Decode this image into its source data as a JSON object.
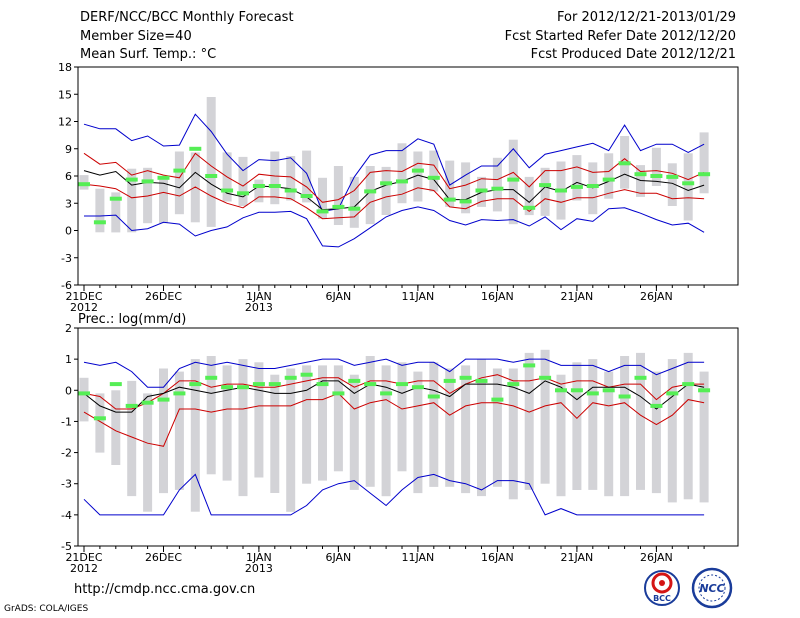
{
  "header": {
    "title": "DERF/NCC/BCC Monthly Forecast",
    "member_size": "Member Size=40",
    "variable": "Mean Surf. Temp.: °C",
    "fcst_period": "For 2012/12/21-2013/01/29",
    "fcst_started": "Fcst Started Refer Date 2012/12/20",
    "fcst_produced": "Fcst Produced Date 2012/12/21"
  },
  "footer": {
    "url": "http://cmdp.ncc.cma.gov.cn",
    "credit": "GrADS: COLA/IGES",
    "logo_left": "BCC",
    "logo_right": "NCC"
  },
  "colors": {
    "box": "#d3d3d7",
    "max_min": "#0000cc",
    "p10_p90": "#cc0000",
    "mean": "#000000",
    "green": "#55ee55"
  },
  "chart_data": [
    {
      "type": "box-plume",
      "name": "temperature",
      "title": "Mean Surf. Temp.: °C",
      "ylim": [
        -6,
        18
      ],
      "yticks": [
        "18",
        "15",
        "12",
        "9",
        "6",
        "3",
        "0",
        "-3",
        "-6"
      ],
      "xticks": [
        {
          "day": 1,
          "label": "21DEC",
          "sub": "2012"
        },
        {
          "day": 6,
          "label": "26DEC",
          "sub": ""
        },
        {
          "day": 12,
          "label": "1JAN",
          "sub": "2013"
        },
        {
          "day": 17,
          "label": "6JAN",
          "sub": ""
        },
        {
          "day": 22,
          "label": "11JAN",
          "sub": ""
        },
        {
          "day": 27,
          "label": "16JAN",
          "sub": ""
        },
        {
          "day": 32,
          "label": "21JAN",
          "sub": ""
        },
        {
          "day": 37,
          "label": "26JAN",
          "sub": ""
        }
      ],
      "days": [
        1,
        2,
        3,
        4,
        5,
        6,
        7,
        8,
        9,
        10,
        11,
        12,
        13,
        14,
        15,
        16,
        17,
        18,
        19,
        20,
        21,
        22,
        23,
        24,
        25,
        26,
        27,
        28,
        29,
        30,
        31,
        32,
        33,
        34,
        35,
        36,
        37,
        38,
        39,
        40
      ],
      "max": [
        11.7,
        11.2,
        11.2,
        9.9,
        10.4,
        9.3,
        9.4,
        12.8,
        10.9,
        8.4,
        6.6,
        7.8,
        7.7,
        8.0,
        6.3,
        2.1,
        2.4,
        5.9,
        8.3,
        8.8,
        8.8,
        10.1,
        9.5,
        5.0,
        6.1,
        7.1,
        7.1,
        9.0,
        6.9,
        8.4,
        8.8,
        9.2,
        9.6,
        8.8,
        11.6,
        8.8,
        9.5,
        9.5,
        8.6,
        9.5
      ],
      "p90": [
        8.5,
        7.3,
        7.5,
        6.1,
        6.6,
        6.1,
        5.8,
        8.5,
        7.1,
        5.9,
        4.9,
        6.2,
        6.0,
        5.9,
        4.8,
        3.1,
        3.4,
        4.4,
        6.4,
        6.6,
        6.5,
        7.4,
        7.2,
        4.6,
        5.0,
        5.7,
        5.6,
        6.4,
        4.8,
        6.6,
        6.6,
        7.0,
        6.4,
        6.5,
        7.9,
        6.5,
        6.6,
        6.3,
        5.6,
        6.4
      ],
      "mean": [
        6.6,
        6.1,
        6.5,
        5.0,
        5.3,
        5.2,
        4.7,
        6.4,
        5.1,
        4.1,
        3.7,
        4.9,
        4.8,
        4.6,
        3.7,
        2.3,
        2.4,
        2.6,
        4.3,
        5.0,
        5.4,
        6.1,
        5.6,
        3.4,
        3.4,
        4.2,
        4.5,
        4.5,
        3.1,
        4.8,
        4.3,
        5.3,
        4.7,
        5.4,
        6.2,
        5.5,
        5.4,
        5.2,
        4.4,
        5.0
      ],
      "p10": [
        5.1,
        4.9,
        4.6,
        3.6,
        3.8,
        4.2,
        3.8,
        4.8,
        3.8,
        3.0,
        2.5,
        3.7,
        3.7,
        3.5,
        2.5,
        1.3,
        1.4,
        1.5,
        3.1,
        3.7,
        4.0,
        4.7,
        4.4,
        2.6,
        2.4,
        3.2,
        3.5,
        3.5,
        2.1,
        3.5,
        3.1,
        3.6,
        3.6,
        4.1,
        4.5,
        4.1,
        4.1,
        3.5,
        3.6,
        3.5
      ],
      "min": [
        1.6,
        1.6,
        1.7,
        0.0,
        0.2,
        0.9,
        0.7,
        -0.6,
        0.0,
        0.4,
        1.4,
        2.0,
        2.0,
        2.1,
        1.3,
        -1.7,
        -1.8,
        -0.9,
        0.3,
        1.5,
        2.2,
        2.6,
        2.2,
        1.1,
        0.6,
        1.2,
        1.1,
        1.2,
        0.5,
        1.5,
        0.1,
        1.3,
        1.0,
        2.4,
        2.5,
        1.9,
        1.2,
        0.6,
        0.8,
        -0.2
      ],
      "box_top": [
        6.1,
        4.6,
        4.2,
        6.8,
        6.9,
        5.6,
        8.7,
        8.6,
        14.7,
        8.6,
        8.1,
        5.6,
        8.7,
        8.2,
        8.8,
        5.8,
        7.1,
        5.9,
        7.1,
        7.0,
        9.6,
        8.7,
        8.8,
        7.7,
        7.5,
        5.9,
        8.0,
        10.0,
        5.9,
        6.9,
        7.6,
        8.3,
        7.5,
        8.5,
        10.4,
        7.2,
        9.1,
        7.4,
        8.5,
        10.8
      ],
      "box_bot": [
        4.5,
        -0.2,
        -0.2,
        -0.2,
        0.8,
        0.8,
        1.8,
        0.9,
        0.4,
        3.2,
        2.7,
        3.1,
        2.9,
        3.3,
        3.1,
        1.3,
        0.6,
        0.3,
        0.7,
        1.7,
        3.0,
        3.2,
        4.3,
        2.6,
        1.9,
        2.6,
        2.1,
        0.7,
        1.7,
        1.6,
        1.2,
        3.3,
        1.8,
        3.5,
        4.6,
        3.7,
        4.9,
        2.7,
        1.1,
        4.1
      ],
      "green": [
        5.1,
        0.9,
        3.5,
        5.6,
        5.4,
        5.8,
        6.6,
        9.0,
        6.0,
        4.4,
        4.1,
        4.9,
        4.9,
        4.4,
        3.8,
        2.1,
        2.6,
        2.4,
        4.3,
        5.2,
        5.4,
        6.6,
        5.8,
        3.4,
        3.2,
        4.4,
        4.6,
        5.6,
        2.5,
        5.0,
        4.4,
        4.8,
        4.9,
        5.6,
        7.4,
        6.2,
        6.0,
        5.9,
        5.2,
        6.2
      ]
    },
    {
      "type": "box-plume",
      "name": "precipitation",
      "title": "Prec.: log(mm/d)",
      "ylim": [
        -5,
        2
      ],
      "yticks": [
        "2",
        "1",
        "0",
        "-1",
        "-2",
        "-3",
        "-4",
        "-5"
      ],
      "xticks": [
        {
          "day": 1,
          "label": "21DEC",
          "sub": "2012"
        },
        {
          "day": 6,
          "label": "26DEC",
          "sub": ""
        },
        {
          "day": 12,
          "label": "1JAN",
          "sub": "2013"
        },
        {
          "day": 17,
          "label": "6JAN",
          "sub": ""
        },
        {
          "day": 22,
          "label": "11JAN",
          "sub": ""
        },
        {
          "day": 27,
          "label": "16JAN",
          "sub": ""
        },
        {
          "day": 32,
          "label": "21JAN",
          "sub": ""
        },
        {
          "day": 37,
          "label": "26JAN",
          "sub": ""
        }
      ],
      "days": [
        1,
        2,
        3,
        4,
        5,
        6,
        7,
        8,
        9,
        10,
        11,
        12,
        13,
        14,
        15,
        16,
        17,
        18,
        19,
        20,
        21,
        22,
        23,
        24,
        25,
        26,
        27,
        28,
        29,
        30,
        31,
        32,
        33,
        34,
        35,
        36,
        37,
        38,
        39,
        40
      ],
      "max": [
        0.9,
        0.8,
        0.9,
        0.6,
        0.1,
        0.1,
        0.7,
        0.9,
        0.8,
        0.9,
        0.8,
        0.7,
        0.7,
        0.8,
        0.9,
        1.0,
        1.0,
        0.8,
        0.9,
        1.0,
        0.8,
        0.9,
        0.9,
        0.6,
        1.0,
        1.0,
        1.0,
        0.9,
        1.0,
        1.0,
        0.8,
        0.8,
        0.8,
        0.6,
        0.8,
        0.8,
        0.5,
        0.7,
        0.9,
        0.9
      ],
      "p90": [
        -0.1,
        -0.2,
        -0.6,
        -0.6,
        -0.4,
        -0.1,
        0.3,
        0.3,
        0.1,
        0.2,
        0.2,
        0.1,
        0.1,
        0.2,
        0.3,
        0.4,
        0.4,
        0.1,
        0.3,
        0.3,
        0.2,
        0.3,
        0.3,
        -0.1,
        0.2,
        0.4,
        0.5,
        0.3,
        0.3,
        0.4,
        0.2,
        0.3,
        0.3,
        0.1,
        0.2,
        0.2,
        -0.3,
        0.1,
        0.2,
        0.2
      ],
      "mean": [
        -0.1,
        -0.5,
        -0.7,
        -0.7,
        -0.2,
        -0.1,
        0.1,
        0.0,
        -0.1,
        0.0,
        0.1,
        0.0,
        -0.1,
        -0.1,
        0.0,
        0.3,
        0.3,
        -0.1,
        0.2,
        0.1,
        -0.1,
        0.1,
        0.0,
        -0.2,
        0.2,
        0.2,
        0.2,
        0.1,
        -0.1,
        0.3,
        0.1,
        -0.3,
        0.1,
        0.1,
        0.1,
        -0.2,
        -0.6,
        -0.2,
        0.2,
        0.1
      ],
      "p10": [
        -0.7,
        -1.0,
        -1.3,
        -1.5,
        -1.7,
        -1.8,
        -0.6,
        -0.6,
        -0.7,
        -0.6,
        -0.6,
        -0.5,
        -0.5,
        -0.5,
        -0.3,
        -0.3,
        -0.1,
        -0.6,
        -0.4,
        -0.3,
        -0.6,
        -0.5,
        -0.4,
        -0.8,
        -0.5,
        -0.4,
        -0.4,
        -0.5,
        -0.7,
        -0.5,
        -0.4,
        -0.9,
        -0.4,
        -0.5,
        -0.4,
        -0.8,
        -1.1,
        -0.8,
        -0.3,
        -0.4
      ],
      "min": [
        -3.5,
        -4.0,
        -4.0,
        -4.0,
        -4.0,
        -4.0,
        -3.2,
        -2.7,
        -4.0,
        -4.0,
        -4.0,
        -4.0,
        -4.0,
        -4.0,
        -3.7,
        -3.2,
        -3.0,
        -2.9,
        -3.3,
        -3.7,
        -3.2,
        -2.8,
        -2.7,
        -2.9,
        -3.0,
        -3.2,
        -2.9,
        -2.9,
        -3.0,
        -4.0,
        -3.8,
        -4.0,
        -4.0,
        -4.0,
        -4.0,
        -4.0,
        -4.0,
        -4.0,
        -4.0,
        -4.0
      ],
      "box_top": [
        0.4,
        -0.1,
        0.0,
        0.3,
        -0.1,
        0.7,
        0.6,
        1.0,
        1.1,
        0.8,
        1.0,
        0.9,
        0.5,
        0.7,
        0.8,
        0.8,
        0.8,
        0.5,
        1.1,
        0.8,
        0.9,
        0.6,
        0.9,
        0.7,
        0.8,
        1.0,
        0.7,
        0.7,
        1.2,
        1.3,
        0.5,
        0.9,
        1.0,
        0.6,
        1.1,
        1.2,
        0.6,
        1.0,
        1.2,
        0.6
      ],
      "box_bot": [
        -1.0,
        -2.0,
        -2.4,
        -3.4,
        -3.9,
        -3.3,
        -3.2,
        -3.9,
        -2.7,
        -2.9,
        -3.4,
        -2.8,
        -3.3,
        -3.9,
        -3.0,
        -2.9,
        -2.6,
        -3.2,
        -3.1,
        -3.4,
        -2.6,
        -3.3,
        -3.1,
        -3.1,
        -3.3,
        -3.4,
        -3.1,
        -3.5,
        -3.2,
        -3.0,
        -3.4,
        -3.2,
        -3.2,
        -3.4,
        -3.4,
        -3.2,
        -3.3,
        -3.6,
        -3.5,
        -3.6
      ],
      "green": [
        -0.1,
        -0.9,
        0.2,
        -0.5,
        -0.4,
        -0.3,
        -0.1,
        0.2,
        0.4,
        0.1,
        0.1,
        0.2,
        0.2,
        0.4,
        0.5,
        0.2,
        -0.1,
        0.3,
        0.2,
        -0.1,
        0.2,
        0.1,
        -0.2,
        0.3,
        0.4,
        0.3,
        -0.3,
        0.2,
        0.8,
        0.4,
        0.0,
        0.0,
        -0.1,
        0.0,
        -0.2,
        0.4,
        -0.5,
        -0.1,
        0.2,
        0.0
      ]
    }
  ]
}
